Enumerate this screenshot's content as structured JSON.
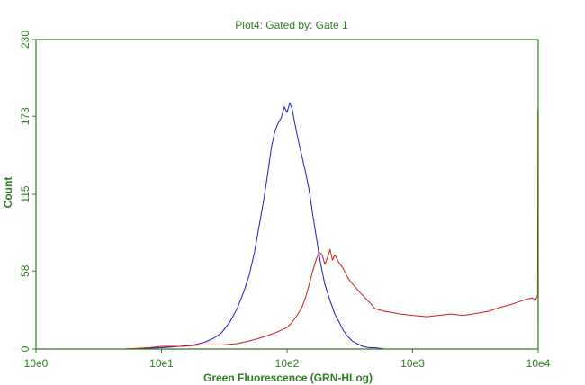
{
  "colors": {
    "axis": "#2e7d22",
    "series_blue": "#1a1acc",
    "series_red": "#cc1a1a",
    "background": "#ffffff"
  },
  "chart_data": {
    "type": "line",
    "title": "Plot4:  Gated by: Gate 1",
    "xlabel": "Green Fluorescence (GRN-HLog)",
    "ylabel": "Count",
    "x_scale": "log",
    "xlim": [
      1,
      10000
    ],
    "ylim": [
      0,
      230
    ],
    "x_tick_labels": [
      "10e0",
      "10e1",
      "10e2",
      "10e3",
      "10e4"
    ],
    "x_tick_values": [
      1,
      10,
      100,
      1000,
      10000
    ],
    "y_tick_labels": [
      "0",
      "58",
      "115",
      "173",
      "230"
    ],
    "y_tick_values": [
      0,
      58,
      115,
      173,
      230
    ],
    "grid": false,
    "legend": "none",
    "series": [
      {
        "color": "#1a1acc",
        "x": [
          1,
          5,
          10,
          14,
          18,
          22,
          26,
          30,
          35,
          40,
          45,
          50,
          55,
          60,
          65,
          70,
          75,
          80,
          85,
          90,
          95,
          100,
          105,
          110,
          115,
          120,
          125,
          130,
          140,
          150,
          160,
          170,
          180,
          190,
          200,
          220,
          240,
          260,
          280,
          300,
          330,
          360,
          400,
          450,
          500,
          600,
          700,
          800,
          10000
        ],
        "y": [
          0,
          0,
          1,
          2,
          3,
          5,
          8,
          12,
          20,
          30,
          42,
          55,
          72,
          92,
          110,
          130,
          150,
          162,
          168,
          172,
          180,
          176,
          183,
          178,
          168,
          160,
          152,
          145,
          132,
          118,
          100,
          85,
          70,
          58,
          48,
          36,
          26,
          20,
          14,
          10,
          6,
          4,
          2,
          1,
          1,
          0,
          0,
          0,
          0
        ]
      },
      {
        "color": "#cc1a1a",
        "x": [
          1,
          5,
          8,
          10,
          15,
          20,
          30,
          40,
          50,
          60,
          70,
          80,
          90,
          100,
          110,
          120,
          130,
          140,
          150,
          160,
          170,
          180,
          190,
          200,
          210,
          220,
          230,
          240,
          260,
          280,
          300,
          320,
          350,
          380,
          420,
          460,
          500,
          600,
          700,
          800,
          1000,
          1300,
          1600,
          2000,
          2500,
          3000,
          4000,
          5000,
          6000,
          7000,
          8000,
          9000,
          9500,
          9900,
          9950,
          10000
        ],
        "y": [
          0,
          0,
          1,
          2,
          2,
          3,
          3,
          4,
          6,
          8,
          10,
          12,
          14,
          16,
          20,
          25,
          30,
          38,
          48,
          58,
          66,
          72,
          70,
          63,
          68,
          74,
          66,
          70,
          64,
          60,
          54,
          50,
          46,
          42,
          38,
          34,
          30,
          28,
          27,
          26,
          25,
          24,
          25,
          26,
          25,
          26,
          28,
          31,
          33,
          35,
          37,
          38,
          36,
          40,
          178,
          0
        ]
      }
    ]
  }
}
